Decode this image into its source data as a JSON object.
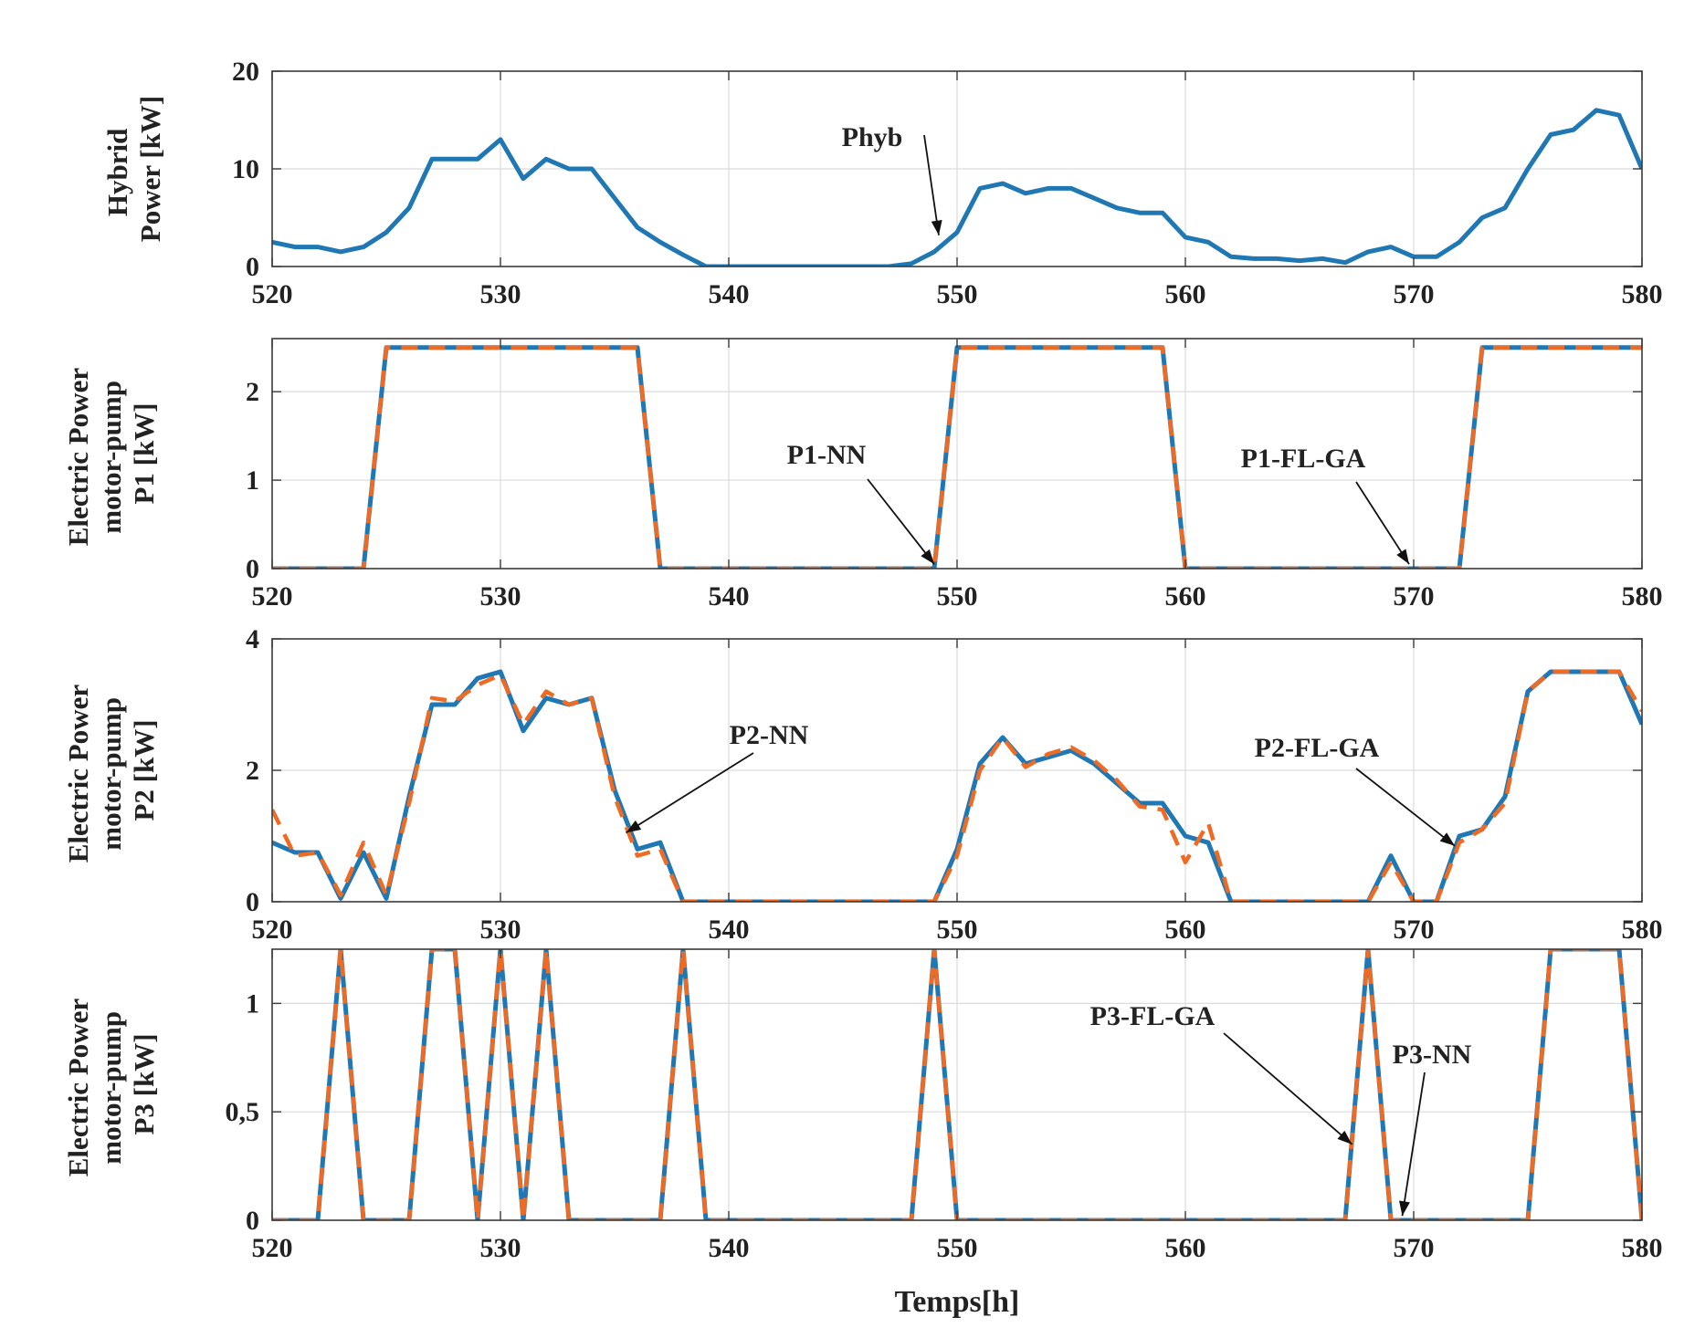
{
  "colors": {
    "nn": "#1f77b4",
    "flga": "#ef6a23",
    "hybrid": "#1f77b4"
  },
  "chart_data": [
    {
      "type": "line",
      "ylabel_lines": [
        "Hybrid",
        "Power [kW]"
      ],
      "xlabel": "",
      "xlim": [
        520,
        580
      ],
      "ylim": [
        0,
        20
      ],
      "xticks": [
        520,
        530,
        540,
        550,
        560,
        570,
        580
      ],
      "yticks": [
        {
          "v": 0,
          "label": "0"
        },
        {
          "v": 10,
          "label": "10"
        },
        {
          "v": 20,
          "label": "20"
        }
      ],
      "grid": true,
      "series": [
        {
          "key": "phyb",
          "style": "solid",
          "color": "#1f77b4",
          "x": [
            520,
            521,
            522,
            523,
            524,
            525,
            526,
            527,
            528,
            529,
            530,
            531,
            532,
            533,
            534,
            535,
            536,
            537,
            538,
            539,
            540,
            542,
            544,
            546,
            547,
            548,
            549,
            550,
            551,
            552,
            553,
            554,
            555,
            556,
            557,
            558,
            559,
            560,
            561,
            562,
            563,
            564,
            565,
            566,
            567,
            568,
            569,
            570,
            571,
            572,
            573,
            574,
            575,
            576,
            577,
            578,
            579,
            580
          ],
          "y": [
            2.5,
            2,
            2,
            1.5,
            2,
            3.5,
            6,
            11,
            11,
            11,
            13,
            9,
            11,
            10,
            10,
            7,
            4,
            2.5,
            1.2,
            0,
            0,
            0,
            0,
            0,
            0,
            0.3,
            1.5,
            3.5,
            8,
            8.5,
            7.5,
            8,
            8,
            7,
            6,
            5.5,
            5.5,
            3,
            2.5,
            1,
            0.8,
            0.8,
            0.6,
            0.8,
            0.4,
            1.5,
            2,
            1,
            1,
            2.5,
            5,
            6,
            10,
            13.5,
            14,
            16,
            15.5,
            10
          ]
        }
      ],
      "annotations": [
        {
          "text": "Phyb",
          "at": [
            549.2,
            3.2
          ]
        }
      ]
    },
    {
      "type": "line",
      "ylabel_lines": [
        "Electric Power",
        "motor-pump",
        "P1 [kW]"
      ],
      "xlabel": "",
      "xlim": [
        520,
        580
      ],
      "ylim": [
        0,
        2.6
      ],
      "xticks": [
        520,
        530,
        540,
        550,
        560,
        570,
        580
      ],
      "yticks": [
        {
          "v": 0,
          "label": "0"
        },
        {
          "v": 1,
          "label": "1"
        },
        {
          "v": 2,
          "label": "2"
        }
      ],
      "grid": true,
      "series": [
        {
          "key": "p1_nn",
          "style": "solid",
          "color": "#1f77b4",
          "x": [
            520,
            524,
            525,
            536,
            537,
            549,
            550,
            559,
            560,
            572,
            573,
            580
          ],
          "y": [
            0,
            0,
            2.5,
            2.5,
            0,
            0,
            2.5,
            2.5,
            0,
            0,
            2.5,
            2.5
          ]
        },
        {
          "key": "p1_flga",
          "style": "dashed",
          "color": "#ef6a23",
          "x": [
            520,
            524,
            525,
            536,
            537,
            549,
            550,
            559,
            560,
            572,
            573,
            580
          ],
          "y": [
            0,
            0,
            2.5,
            2.5,
            0,
            0,
            2.5,
            2.5,
            0,
            0,
            2.5,
            2.5
          ]
        }
      ],
      "annotations": [
        {
          "text": "P1-NN",
          "at": [
            549,
            0.05
          ]
        },
        {
          "text": "P1-FL-GA",
          "at": [
            569.8,
            0.05
          ]
        }
      ]
    },
    {
      "type": "line",
      "ylabel_lines": [
        "Electric Power",
        "motor-pump",
        "P2 [kW]"
      ],
      "xlabel": "",
      "xlim": [
        520,
        580
      ],
      "ylim": [
        0,
        4
      ],
      "xticks": [
        520,
        530,
        540,
        550,
        560,
        570,
        580
      ],
      "yticks": [
        {
          "v": 0,
          "label": "0"
        },
        {
          "v": 2,
          "label": "2"
        },
        {
          "v": 4,
          "label": "4"
        }
      ],
      "grid": true,
      "series": [
        {
          "key": "p2_nn",
          "style": "solid",
          "color": "#1f77b4",
          "x": [
            520,
            521,
            522,
            523,
            524,
            525,
            526,
            527,
            528,
            529,
            530,
            531,
            532,
            533,
            534,
            535,
            536,
            537,
            538,
            539,
            549,
            550,
            551,
            552,
            553,
            554,
            555,
            556,
            557,
            558,
            559,
            560,
            561,
            562,
            568,
            569,
            570,
            571,
            572,
            573,
            574,
            575,
            576,
            577,
            578,
            579,
            580
          ],
          "y": [
            0.9,
            0.75,
            0.75,
            0.05,
            0.75,
            0.05,
            1.6,
            3.0,
            3.0,
            3.4,
            3.5,
            2.6,
            3.1,
            3.0,
            3.1,
            1.7,
            0.8,
            0.9,
            0,
            0,
            0,
            0.8,
            2.1,
            2.5,
            2.1,
            2.2,
            2.3,
            2.1,
            1.8,
            1.5,
            1.5,
            1.0,
            0.9,
            0,
            0,
            0.7,
            0,
            0,
            1.0,
            1.1,
            1.6,
            3.2,
            3.5,
            3.5,
            3.5,
            3.5,
            2.7
          ]
        },
        {
          "key": "p2_flga",
          "style": "dashed",
          "color": "#ef6a23",
          "x": [
            520,
            521,
            522,
            523,
            524,
            525,
            526,
            527,
            528,
            529,
            530,
            531,
            532,
            533,
            534,
            535,
            536,
            537,
            538,
            539,
            549,
            550,
            551,
            552,
            553,
            554,
            555,
            556,
            557,
            558,
            559,
            560,
            561,
            562,
            568,
            569,
            570,
            571,
            572,
            573,
            574,
            575,
            576,
            577,
            578,
            579,
            580
          ],
          "y": [
            1.4,
            0.7,
            0.75,
            0.1,
            0.9,
            0.1,
            1.5,
            3.1,
            3.05,
            3.3,
            3.45,
            2.7,
            3.2,
            3.0,
            3.1,
            1.6,
            0.7,
            0.8,
            0,
            0,
            0,
            0.7,
            2.0,
            2.5,
            2.05,
            2.25,
            2.35,
            2.15,
            1.85,
            1.45,
            1.4,
            0.6,
            1.2,
            0,
            0,
            0.6,
            0,
            0,
            0.9,
            1.1,
            1.5,
            3.2,
            3.5,
            3.5,
            3.5,
            3.5,
            2.9
          ]
        }
      ],
      "annotations": [
        {
          "text": "P2-NN",
          "at": [
            535.5,
            1.05
          ]
        },
        {
          "text": "P2-FL-GA",
          "at": [
            571.8,
            0.85
          ]
        }
      ]
    },
    {
      "type": "line",
      "ylabel_lines": [
        "Electric Power",
        "motor-pump",
        "P3 [kW]"
      ],
      "xlabel": "Temps[h]",
      "xlim": [
        520,
        580
      ],
      "ylim": [
        0,
        1.25
      ],
      "xticks": [
        520,
        530,
        540,
        550,
        560,
        570,
        580
      ],
      "yticks": [
        {
          "v": 0,
          "label": "0"
        },
        {
          "v": 0.5,
          "label": "0,5"
        },
        {
          "v": 1,
          "label": "1"
        }
      ],
      "grid": true,
      "series": [
        {
          "key": "p3_nn",
          "style": "solid",
          "color": "#1f77b4",
          "x": [
            520,
            522,
            523,
            524,
            526,
            527,
            528,
            529,
            530,
            531,
            532,
            533,
            537,
            538,
            539,
            548,
            549,
            550,
            567,
            568,
            569,
            575,
            576,
            579,
            580
          ],
          "y": [
            0,
            0,
            1.25,
            0,
            0,
            1.25,
            1.25,
            0,
            1.25,
            0,
            1.25,
            0,
            0,
            1.25,
            0,
            0,
            1.25,
            0,
            0,
            1.25,
            0,
            0,
            1.25,
            1.25,
            0
          ]
        },
        {
          "key": "p3_flga",
          "style": "dashed",
          "color": "#ef6a23",
          "x": [
            520,
            522,
            523,
            524,
            526,
            527,
            528,
            529,
            530,
            531,
            532,
            533,
            537,
            538,
            539,
            548,
            549,
            550,
            567,
            568,
            569,
            575,
            576,
            579,
            580
          ],
          "y": [
            0,
            0,
            1.25,
            0,
            0,
            1.25,
            1.25,
            0,
            1.25,
            0,
            1.25,
            0,
            0,
            1.25,
            0,
            0,
            1.25,
            0,
            0,
            1.25,
            0,
            0,
            1.25,
            1.25,
            0
          ]
        }
      ],
      "annotations": [
        {
          "text": "P3-FL-GA",
          "at": [
            567.3,
            0.35
          ]
        },
        {
          "text": "P3-NN",
          "at": [
            569.5,
            0.02
          ]
        }
      ]
    }
  ]
}
